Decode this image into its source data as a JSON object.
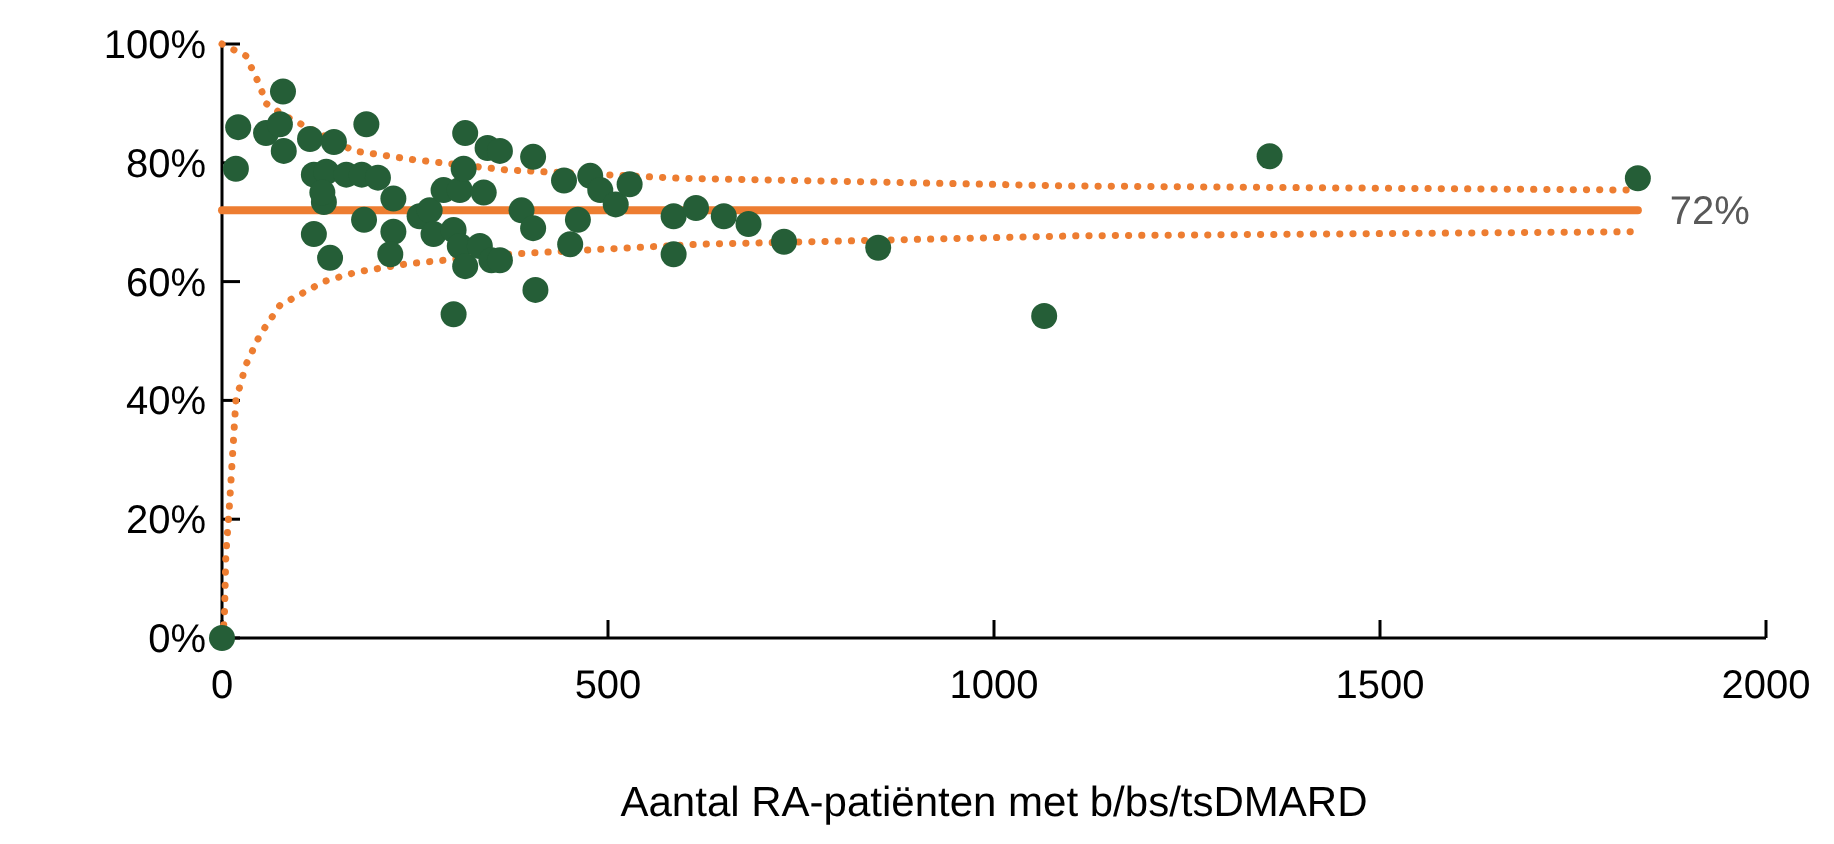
{
  "chart_data": {
    "type": "scatter",
    "xlabel": "Aantal RA-patiënten met b/bs/tsDMARD",
    "xlim": [
      0,
      2000
    ],
    "xticks": [
      0,
      500,
      1000,
      1500,
      2000
    ],
    "ylim": [
      0,
      100
    ],
    "yticks": [
      {
        "value": 0,
        "label": "0%"
      },
      {
        "value": 20,
        "label": "20%"
      },
      {
        "value": 40,
        "label": "40%"
      },
      {
        "value": 60,
        "label": "60%"
      },
      {
        "value": 80,
        "label": "80%"
      },
      {
        "value": 100,
        "label": "100%"
      }
    ],
    "grid": false,
    "series": [
      {
        "type": "line",
        "color": "#ed7d31",
        "line_style": "dotted",
        "marker": "none",
        "x": [
          0,
          31,
          49,
          57,
          80,
          171,
          249,
          368,
          593,
          1104,
          1834
        ],
        "values": [
          100,
          98,
          93,
          90,
          88,
          82,
          80.5,
          78.8,
          77.4,
          76.1,
          75.4
        ]
      },
      {
        "type": "line",
        "color": "#ed7d31",
        "line_style": "dotted",
        "marker": "none",
        "x": [
          0,
          3,
          5,
          10,
          18,
          31,
          49,
          75,
          132,
          174,
          240,
          368,
          620,
          1104,
          1834
        ],
        "values": [
          0,
          3,
          14,
          23,
          40,
          46,
          51,
          56,
          60,
          61.6,
          63,
          64.6,
          66.3,
          67.7,
          68.4
        ]
      },
      {
        "type": "line",
        "color": "#ed7d31",
        "line_style": "solid",
        "marker": "none",
        "x": [
          0,
          1834
        ],
        "values": [
          72,
          72
        ],
        "value_labels": [
          null,
          "72%"
        ]
      },
      {
        "color": "#255e37",
        "marker": "circle",
        "x": [
          0,
          18,
          21,
          79,
          57,
          75,
          80,
          114,
          145,
          187,
          119,
          135,
          161,
          181,
          202,
          222,
          132,
          130,
          119,
          140,
          184,
          222,
          218,
          256,
          269,
          274,
          287,
          300,
          308,
          315,
          334,
          349,
          308,
          313,
          315,
          339,
          344,
          360,
          360,
          300,
          406,
          403,
          388,
          403,
          443,
          451,
          461,
          477,
          490,
          510,
          528,
          585,
          585,
          614,
          650,
          682,
          728,
          850,
          1065,
          1357,
          1834
        ],
        "values": [
          0,
          79,
          86,
          92,
          85,
          86.5,
          82,
          84,
          83.5,
          86.5,
          78,
          78.5,
          78,
          78,
          77.5,
          74,
          73.4,
          75,
          68,
          64,
          70.4,
          68.4,
          64.6,
          71,
          72,
          68,
          75.4,
          68.7,
          66,
          62.6,
          66,
          63.6,
          75.4,
          79,
          85,
          75,
          82.5,
          82,
          63.6,
          54.5,
          58.6,
          81,
          72,
          69,
          77,
          66.3,
          70.4,
          77.8,
          75.4,
          73,
          76.4,
          71,
          64.6,
          72.4,
          71,
          69.7,
          66.7,
          65.7,
          54.2,
          81.1,
          77.4
        ]
      }
    ]
  }
}
